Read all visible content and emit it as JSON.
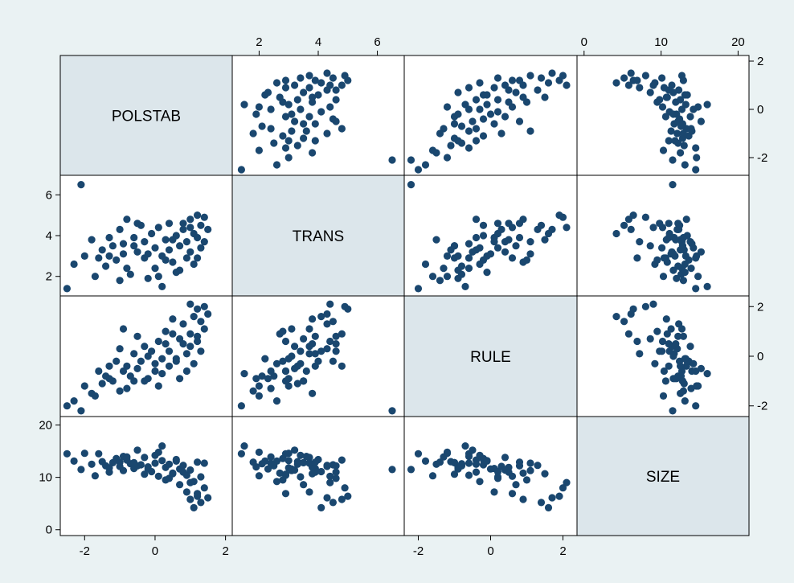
{
  "colors": {
    "background": "#eaf2f3",
    "diagonal_fill": "#dce6eb",
    "marker": "#1a476f",
    "frame": "#000000"
  },
  "chart_data": {
    "type": "scatter",
    "subtype": "scatter-matrix",
    "title": "",
    "variables": [
      {
        "name": "POLSTAB",
        "range": [
          -2.6,
          2.1
        ],
        "ticks": [
          -2,
          0,
          2
        ]
      },
      {
        "name": "TRANS",
        "range": [
          1.2,
          6.8
        ],
        "ticks": [
          2,
          4,
          6
        ]
      },
      {
        "name": "RULE",
        "range": [
          -2.3,
          2.3
        ],
        "ticks": [
          -2,
          0,
          2
        ]
      },
      {
        "name": "SIZE",
        "range": [
          -0.5,
          21.0
        ],
        "ticks": [
          0,
          10,
          20
        ]
      }
    ],
    "axis_placement": {
      "POLSTAB": {
        "x_axis": "bottom",
        "y_axis": "right"
      },
      "TRANS": {
        "x_axis": "top",
        "y_axis": "left"
      },
      "RULE": {
        "x_axis": "bottom",
        "y_axis": "right"
      },
      "SIZE": {
        "x_axis": "top",
        "y_axis": "left"
      }
    },
    "tick_labels": {
      "POLSTAB": [
        "-2",
        "0",
        "2"
      ],
      "TRANS": [
        "2",
        "4",
        "6"
      ],
      "RULE": [
        "-2",
        "0",
        "2"
      ],
      "SIZE": [
        "0",
        "10",
        "20"
      ]
    },
    "grid": false,
    "legend": "none",
    "observations": [
      {
        "POLSTAB": -2.5,
        "TRANS": 1.4,
        "RULE": -2.0,
        "SIZE": 14.5
      },
      {
        "POLSTAB": -2.1,
        "TRANS": 6.5,
        "RULE": -2.2,
        "SIZE": 11.5
      },
      {
        "POLSTAB": -2.3,
        "TRANS": 2.6,
        "RULE": -1.8,
        "SIZE": 13.1
      },
      {
        "POLSTAB": -2.0,
        "TRANS": 3.0,
        "RULE": -1.2,
        "SIZE": 14.6
      },
      {
        "POLSTAB": -1.8,
        "TRANS": 3.8,
        "RULE": -1.5,
        "SIZE": 12.5
      },
      {
        "POLSTAB": -1.6,
        "TRANS": 2.9,
        "RULE": -0.6,
        "SIZE": 14.5
      },
      {
        "POLSTAB": -1.5,
        "TRANS": 3.3,
        "RULE": -1.1,
        "SIZE": 13.0
      },
      {
        "POLSTAB": -1.4,
        "TRANS": 2.5,
        "RULE": -0.8,
        "SIZE": 12.2
      },
      {
        "POLSTAB": -1.3,
        "TRANS": 3.9,
        "RULE": -0.4,
        "SIZE": 11.0
      },
      {
        "POLSTAB": -1.2,
        "TRANS": 3.5,
        "RULE": -1.0,
        "SIZE": 12.8
      },
      {
        "POLSTAB": -1.1,
        "TRANS": 2.8,
        "RULE": -0.2,
        "SIZE": 13.6
      },
      {
        "POLSTAB": -1.0,
        "TRANS": 4.3,
        "RULE": 0.3,
        "SIZE": 12.1
      },
      {
        "POLSTAB": -0.9,
        "TRANS": 3.6,
        "RULE": -0.6,
        "SIZE": 14.0
      },
      {
        "POLSTAB": -0.9,
        "TRANS": 3.1,
        "RULE": 1.1,
        "SIZE": 11.3
      },
      {
        "POLSTAB": -0.8,
        "TRANS": 4.8,
        "RULE": -0.4,
        "SIZE": 13.3
      },
      {
        "POLSTAB": -0.7,
        "TRANS": 2.1,
        "RULE": -0.8,
        "SIZE": 12.6
      },
      {
        "POLSTAB": -0.6,
        "TRANS": 3.9,
        "RULE": 0.1,
        "SIZE": 11.7
      },
      {
        "POLSTAB": -0.5,
        "TRANS": 3.2,
        "RULE": -0.5,
        "SIZE": 15.2
      },
      {
        "POLSTAB": -0.4,
        "TRANS": 4.5,
        "RULE": -0.2,
        "SIZE": 12.4
      },
      {
        "POLSTAB": -0.3,
        "TRANS": 2.9,
        "RULE": -1.0,
        "SIZE": 10.6
      },
      {
        "POLSTAB": -0.3,
        "TRANS": 3.7,
        "RULE": 0.4,
        "SIZE": 13.8
      },
      {
        "POLSTAB": -0.2,
        "TRANS": 1.9,
        "RULE": -0.9,
        "SIZE": 12.0
      },
      {
        "POLSTAB": -0.1,
        "TRANS": 4.1,
        "RULE": 0.2,
        "SIZE": 11.1
      },
      {
        "POLSTAB": 0.0,
        "TRANS": 3.4,
        "RULE": -0.3,
        "SIZE": 14.2
      },
      {
        "POLSTAB": 0.0,
        "TRANS": 2.4,
        "RULE": -0.6,
        "SIZE": 12.7
      },
      {
        "POLSTAB": 0.1,
        "TRANS": 4.4,
        "RULE": 0.6,
        "SIZE": 10.2
      },
      {
        "POLSTAB": 0.2,
        "TRANS": 3.0,
        "RULE": -0.1,
        "SIZE": 13.2
      },
      {
        "POLSTAB": 0.2,
        "TRANS": 1.5,
        "RULE": -0.7,
        "SIZE": 16.0
      },
      {
        "POLSTAB": 0.3,
        "TRANS": 3.8,
        "RULE": 0.5,
        "SIZE": 11.9
      },
      {
        "POLSTAB": 0.4,
        "TRANS": 4.6,
        "RULE": 0.2,
        "SIZE": 9.8
      },
      {
        "POLSTAB": 0.4,
        "TRANS": 3.3,
        "RULE": -0.4,
        "SIZE": 12.5
      },
      {
        "POLSTAB": 0.5,
        "TRANS": 2.7,
        "RULE": 0.9,
        "SIZE": 10.8
      },
      {
        "POLSTAB": 0.6,
        "TRANS": 4.0,
        "RULE": -0.2,
        "SIZE": 13.4
      },
      {
        "POLSTAB": 0.7,
        "TRANS": 3.5,
        "RULE": 0.7,
        "SIZE": 8.6
      },
      {
        "POLSTAB": 0.7,
        "TRANS": 2.3,
        "RULE": -0.9,
        "SIZE": 11.6
      },
      {
        "POLSTAB": 0.8,
        "TRANS": 4.3,
        "RULE": 1.3,
        "SIZE": 12.3
      },
      {
        "POLSTAB": 0.9,
        "TRANS": 3.7,
        "RULE": 0.1,
        "SIZE": 7.2
      },
      {
        "POLSTAB": 0.9,
        "TRANS": 2.9,
        "RULE": -0.6,
        "SIZE": 10.4
      },
      {
        "POLSTAB": 1.0,
        "TRANS": 4.8,
        "RULE": 0.9,
        "SIZE": 5.8
      },
      {
        "POLSTAB": 1.0,
        "TRANS": 3.2,
        "RULE": 0.4,
        "SIZE": 11.4
      },
      {
        "POLSTAB": 1.1,
        "TRANS": 4.1,
        "RULE": 1.6,
        "SIZE": 4.2
      },
      {
        "POLSTAB": 1.1,
        "TRANS": 2.6,
        "RULE": -0.3,
        "SIZE": 9.2
      },
      {
        "POLSTAB": 1.2,
        "TRANS": 5.0,
        "RULE": 1.9,
        "SIZE": 6.4
      },
      {
        "POLSTAB": 1.2,
        "TRANS": 3.9,
        "RULE": 0.8,
        "SIZE": 12.9
      },
      {
        "POLSTAB": 1.3,
        "TRANS": 4.5,
        "RULE": 1.4,
        "SIZE": 5.2
      },
      {
        "POLSTAB": 1.3,
        "TRANS": 3.4,
        "RULE": 0.2,
        "SIZE": 10.1
      },
      {
        "POLSTAB": 1.4,
        "TRANS": 4.9,
        "RULE": 2.0,
        "SIZE": 8.0
      },
      {
        "POLSTAB": 1.4,
        "TRANS": 3.7,
        "RULE": 1.1,
        "SIZE": 12.7
      },
      {
        "POLSTAB": 1.5,
        "TRANS": 4.3,
        "RULE": 1.7,
        "SIZE": 6.1
      },
      {
        "POLSTAB": -0.8,
        "TRANS": 2.4,
        "RULE": -1.3,
        "SIZE": 13.9
      },
      {
        "POLSTAB": -0.5,
        "TRANS": 4.6,
        "RULE": 0.8,
        "SIZE": 12.2
      },
      {
        "POLSTAB": -0.2,
        "TRANS": 3.1,
        "RULE": 0.0,
        "SIZE": 11.6
      },
      {
        "POLSTAB": 0.1,
        "TRANS": 2.0,
        "RULE": -1.2,
        "SIZE": 14.8
      },
      {
        "POLSTAB": 0.6,
        "TRANS": 2.2,
        "RULE": -0.1,
        "SIZE": 13.1
      },
      {
        "POLSTAB": -1.7,
        "TRANS": 2.0,
        "RULE": -1.6,
        "SIZE": 10.3
      },
      {
        "POLSTAB": -1.0,
        "TRANS": 1.8,
        "RULE": -1.4,
        "SIZE": 12.9
      },
      {
        "POLSTAB": 0.3,
        "TRANS": 2.8,
        "RULE": 1.0,
        "SIZE": 9.5
      },
      {
        "POLSTAB": 0.8,
        "TRANS": 4.6,
        "RULE": 0.5,
        "SIZE": 11.0
      },
      {
        "POLSTAB": 1.2,
        "TRANS": 2.9,
        "RULE": 0.6,
        "SIZE": 6.9
      },
      {
        "POLSTAB": -1.3,
        "TRANS": 3.0,
        "RULE": -0.9,
        "SIZE": 11.8
      },
      {
        "POLSTAB": -0.6,
        "TRANS": 3.5,
        "RULE": -1.0,
        "SIZE": 12.8
      },
      {
        "POLSTAB": 0.5,
        "TRANS": 3.8,
        "RULE": 1.5,
        "SIZE": 10.7
      },
      {
        "POLSTAB": 1.0,
        "TRANS": 4.4,
        "RULE": 2.1,
        "SIZE": 9.0
      }
    ]
  }
}
